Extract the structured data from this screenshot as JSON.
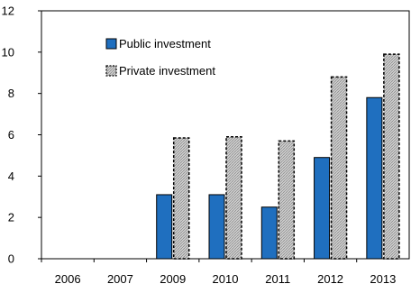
{
  "chart_data": {
    "type": "bar",
    "title": "",
    "xlabel": "",
    "ylabel": "",
    "categories": [
      "2006",
      "2007",
      "2009",
      "2010",
      "2011",
      "2012",
      "2013"
    ],
    "series": [
      {
        "name": "Public investment",
        "values": [
          null,
          null,
          3.1,
          3.1,
          2.5,
          4.9,
          7.8
        ],
        "color": "#1f6fbf"
      },
      {
        "name": "Private investment",
        "values": [
          null,
          null,
          5.85,
          5.9,
          5.7,
          8.8,
          9.9
        ],
        "color": "#c8c8c8",
        "pattern": "crosshatch"
      }
    ],
    "ylim": [
      0,
      12
    ],
    "yticks": [
      0,
      2,
      4,
      6,
      8,
      10,
      12
    ],
    "grid": false,
    "legend_position": "top-left"
  }
}
